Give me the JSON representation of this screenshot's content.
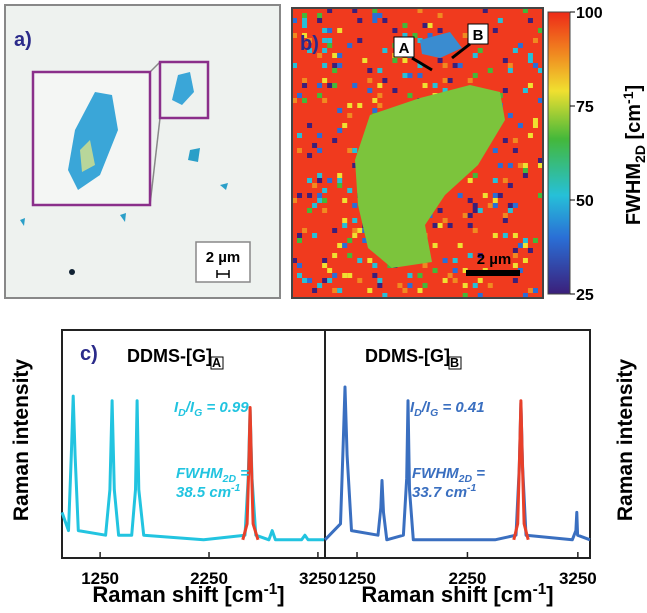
{
  "panel_a": {
    "label": "a)",
    "scale_bar": "2 µm"
  },
  "panel_b": {
    "label": "b)",
    "marker_a": "A",
    "marker_b": "B",
    "scale_bar": "2 µm",
    "colorbar": {
      "lim": [
        25,
        100
      ],
      "ticks": [
        25,
        50,
        75,
        100
      ],
      "title": [
        "FWHM",
        "2D",
        " [cm",
        "-1",
        "]"
      ]
    }
  },
  "panel_c": {
    "label": "c)"
  },
  "chart_data": [
    {
      "type": "line",
      "title": [
        "DDMS-[G]",
        "A"
      ],
      "ratio": [
        "I",
        "D",
        "/I",
        "G",
        " = 0.99"
      ],
      "fwhm": [
        "FWHM",
        "2D",
        " =",
        "38.5 cm",
        "-1"
      ],
      "text_color": "#22c4e0",
      "y_label": "Raman intensity",
      "x_label": [
        "Raman shift [cm",
        "-1",
        "]"
      ],
      "xlim": [
        900,
        3315
      ],
      "xticks": [
        1250,
        2250,
        3250
      ],
      "ylim": [
        0,
        1
      ],
      "series": [
        {
          "color": "#22c4e0",
          "x": [
            900,
            960,
            985,
            1003,
            1020,
            1050,
            1300,
            1340,
            1360,
            1380,
            1420,
            1540,
            1575,
            1590,
            1605,
            1650,
            2200,
            2580,
            2610,
            2627,
            2645,
            2680,
            2800,
            2830,
            2860,
            3100,
            3130,
            3160,
            3315
          ],
          "values": [
            0.2,
            0.12,
            0.45,
            0.71,
            0.45,
            0.12,
            0.1,
            0.3,
            0.69,
            0.3,
            0.1,
            0.1,
            0.3,
            0.69,
            0.3,
            0.1,
            0.08,
            0.1,
            0.35,
            0.65,
            0.35,
            0.1,
            0.08,
            0.12,
            0.08,
            0.08,
            0.1,
            0.08,
            0.08
          ]
        },
        {
          "color": "#e8402a",
          "x": [
            2560,
            2600,
            2615,
            2627,
            2640,
            2655,
            2700
          ],
          "values": [
            0.08,
            0.15,
            0.4,
            0.66,
            0.4,
            0.15,
            0.08
          ]
        }
      ]
    },
    {
      "type": "line",
      "title": [
        "DDMS-[G]",
        "B"
      ],
      "ratio": [
        "I",
        "D",
        "/I",
        "G",
        " = 0.41"
      ],
      "fwhm": [
        "FWHM",
        "2D",
        " =",
        "33.7 cm",
        "-1"
      ],
      "text_color": "#3a6fc0",
      "y_label": "Raman intensity",
      "x_label": [
        "Raman shift [cm",
        "-1",
        "]"
      ],
      "xlim": [
        960,
        3360
      ],
      "xticks": [
        1250,
        2250,
        3250
      ],
      "ylim": [
        0,
        1
      ],
      "series": [
        {
          "color": "#3a6fc0",
          "x": [
            960,
            1100,
            1125,
            1141,
            1160,
            1200,
            1440,
            1465,
            1476,
            1490,
            1520,
            1670,
            1700,
            1712,
            1725,
            1760,
            2500,
            2690,
            2720,
            2734,
            2750,
            2780,
            3200,
            3232,
            3240,
            3248,
            3360
          ],
          "values": [
            0.08,
            0.15,
            0.5,
            0.75,
            0.45,
            0.12,
            0.1,
            0.22,
            0.34,
            0.2,
            0.08,
            0.1,
            0.35,
            0.69,
            0.3,
            0.08,
            0.08,
            0.1,
            0.4,
            0.68,
            0.4,
            0.1,
            0.08,
            0.12,
            0.2,
            0.1,
            0.08
          ]
        },
        {
          "color": "#e8402a",
          "x": [
            2670,
            2705,
            2722,
            2734,
            2746,
            2763,
            2800
          ],
          "values": [
            0.08,
            0.15,
            0.45,
            0.69,
            0.45,
            0.15,
            0.08
          ]
        }
      ]
    }
  ]
}
